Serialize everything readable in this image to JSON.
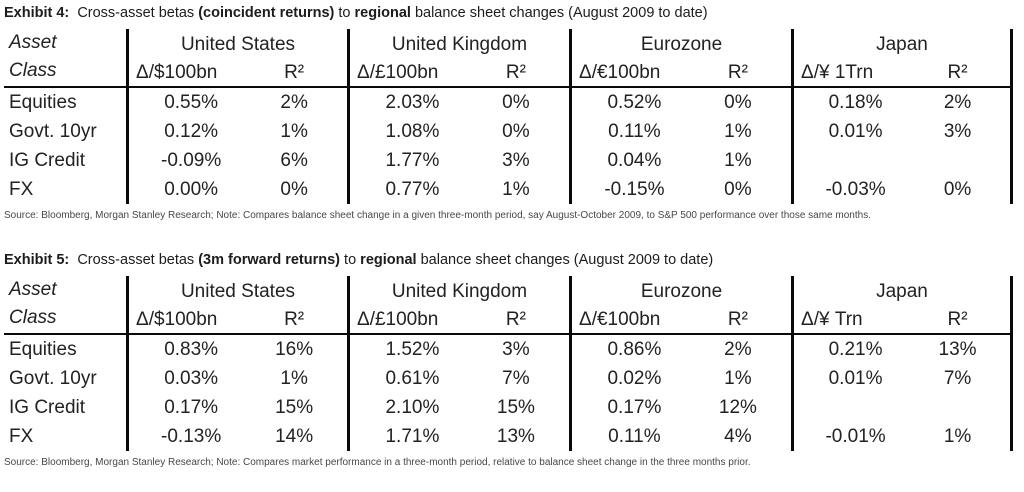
{
  "exhibit4": {
    "title": {
      "label": "Exhibit 4:",
      "seg1": "  Cross-asset betas ",
      "seg2": "(coincident returns)",
      "seg3": " to ",
      "seg4": "regional",
      "seg5": " balance sheet changes (August 2009 to date)"
    },
    "header": {
      "asset_line1": "Asset",
      "asset_line2": "Class",
      "regions": [
        {
          "name": "United States",
          "delta": "Δ/$100bn",
          "r2": "R²"
        },
        {
          "name": "United Kingdom",
          "delta": "Δ/£100bn",
          "r2": "R²"
        },
        {
          "name": "Eurozone",
          "delta": "Δ/€100bn",
          "r2": "R²"
        },
        {
          "name": "Japan",
          "delta": "Δ/¥ 1Trn",
          "r2": "R²"
        }
      ]
    },
    "rows": [
      {
        "asset": "Equities",
        "cells": [
          {
            "value": "0.55%",
            "r2": "2%"
          },
          {
            "value": "2.03%",
            "r2": "0%"
          },
          {
            "value": "0.52%",
            "r2": "0%"
          },
          {
            "value": "0.18%",
            "r2": "2%"
          }
        ]
      },
      {
        "asset": "Govt. 10yr",
        "cells": [
          {
            "value": "0.12%",
            "r2": "1%"
          },
          {
            "value": "1.08%",
            "r2": "0%"
          },
          {
            "value": "0.11%",
            "r2": "1%"
          },
          {
            "value": "0.01%",
            "r2": "3%"
          }
        ]
      },
      {
        "asset": "IG Credit",
        "cells": [
          {
            "value": "-0.09%",
            "r2": "6%"
          },
          {
            "value": "1.77%",
            "r2": "3%"
          },
          {
            "value": "0.04%",
            "r2": "1%"
          },
          {
            "value": "",
            "r2": ""
          }
        ]
      },
      {
        "asset": "FX",
        "cells": [
          {
            "value": "0.00%",
            "r2": "0%"
          },
          {
            "value": "0.77%",
            "r2": "1%"
          },
          {
            "value": "-0.15%",
            "r2": "0%"
          },
          {
            "value": "-0.03%",
            "r2": "0%"
          }
        ]
      }
    ],
    "source": "Source: Bloomberg, Morgan Stanley Research; Note: Compares balance sheet change in a given three-month period, say August-October 2009, to S&P 500 performance over those same months."
  },
  "exhibit5": {
    "title": {
      "label": "Exhibit 5:",
      "seg1": "  Cross-asset betas ",
      "seg2": "(3m forward returns)",
      "seg3": " to ",
      "seg4": "regional",
      "seg5": " balance sheet changes (August 2009 to date)"
    },
    "header": {
      "asset_line1": "Asset",
      "asset_line2": "Class",
      "regions": [
        {
          "name": "United States",
          "delta": "Δ/$100bn",
          "r2": "R²"
        },
        {
          "name": "United Kingdom",
          "delta": "Δ/£100bn",
          "r2": "R²"
        },
        {
          "name": "Eurozone",
          "delta": "Δ/€100bn",
          "r2": "R²"
        },
        {
          "name": "Japan",
          "delta": "Δ/¥ Trn",
          "r2": "R²"
        }
      ]
    },
    "rows": [
      {
        "asset": "Equities",
        "cells": [
          {
            "value": "0.83%",
            "r2": "16%"
          },
          {
            "value": "1.52%",
            "r2": "3%"
          },
          {
            "value": "0.86%",
            "r2": "2%"
          },
          {
            "value": "0.21%",
            "r2": "13%"
          }
        ]
      },
      {
        "asset": "Govt. 10yr",
        "cells": [
          {
            "value": "0.03%",
            "r2": "1%"
          },
          {
            "value": "0.61%",
            "r2": "7%"
          },
          {
            "value": "0.02%",
            "r2": "1%"
          },
          {
            "value": "0.01%",
            "r2": "7%"
          }
        ]
      },
      {
        "asset": "IG Credit",
        "cells": [
          {
            "value": "0.17%",
            "r2": "15%"
          },
          {
            "value": "2.10%",
            "r2": "15%"
          },
          {
            "value": "0.17%",
            "r2": "12%"
          },
          {
            "value": "",
            "r2": ""
          }
        ]
      },
      {
        "asset": "FX",
        "cells": [
          {
            "value": "-0.13%",
            "r2": "14%"
          },
          {
            "value": "1.71%",
            "r2": "13%"
          },
          {
            "value": "0.11%",
            "r2": "4%"
          },
          {
            "value": "-0.01%",
            "r2": "1%"
          }
        ]
      }
    ],
    "source": "Source: Bloomberg, Morgan Stanley Research; Note: Compares market performance in a three-month period, relative to balance sheet change in the three months prior."
  }
}
